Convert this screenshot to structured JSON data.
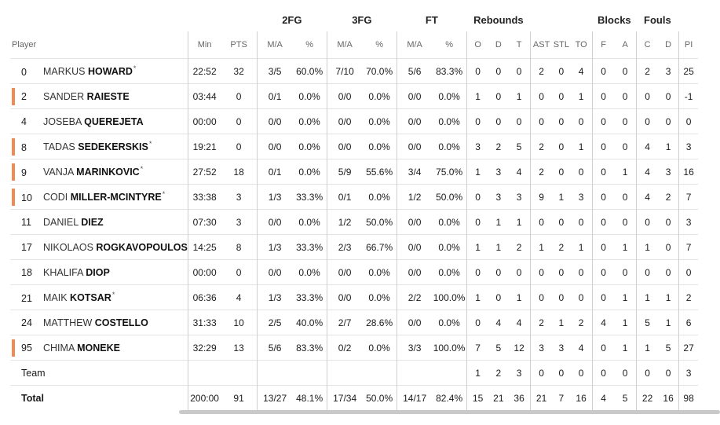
{
  "groups": {
    "fg2": "2FG",
    "fg3": "3FG",
    "ft": "FT",
    "reb": "Rebounds",
    "blk": "Blocks",
    "fouls": "Fouls"
  },
  "headers": {
    "player": "Player",
    "min": "Min",
    "pts": "PTS",
    "fg2_ma": "M/A",
    "fg2_pct": "%",
    "fg3_ma": "M/A",
    "fg3_pct": "%",
    "ft_ma": "M/A",
    "ft_pct": "%",
    "o": "O",
    "d": "D",
    "t": "T",
    "ast": "AST",
    "stl": "STL",
    "to": "TO",
    "bf": "F",
    "ba": "A",
    "fc": "C",
    "fd": "D",
    "pir": "PI"
  },
  "players": [
    {
      "num": "0",
      "first": "MARKUS",
      "last": "HOWARD",
      "star": "*",
      "starter": false,
      "min": "22:52",
      "pts": "32",
      "fg2": "3/5",
      "fg2p": "60.0%",
      "fg3": "7/10",
      "fg3p": "70.0%",
      "ft": "5/6",
      "ftp": "83.3%",
      "o": "0",
      "d": "0",
      "t": "0",
      "ast": "2",
      "stl": "0",
      "to": "4",
      "bf": "0",
      "ba": "0",
      "fc": "2",
      "fd": "3",
      "pir": "25"
    },
    {
      "num": "2",
      "first": "SANDER",
      "last": "RAIESTE",
      "star": "",
      "starter": true,
      "min": "03:44",
      "pts": "0",
      "fg2": "0/1",
      "fg2p": "0.0%",
      "fg3": "0/0",
      "fg3p": "0.0%",
      "ft": "0/0",
      "ftp": "0.0%",
      "o": "1",
      "d": "0",
      "t": "1",
      "ast": "0",
      "stl": "0",
      "to": "1",
      "bf": "0",
      "ba": "0",
      "fc": "0",
      "fd": "0",
      "pir": "-1"
    },
    {
      "num": "4",
      "first": "JOSEBA",
      "last": "QUEREJETA",
      "star": "",
      "starter": false,
      "min": "00:00",
      "pts": "0",
      "fg2": "0/0",
      "fg2p": "0.0%",
      "fg3": "0/0",
      "fg3p": "0.0%",
      "ft": "0/0",
      "ftp": "0.0%",
      "o": "0",
      "d": "0",
      "t": "0",
      "ast": "0",
      "stl": "0",
      "to": "0",
      "bf": "0",
      "ba": "0",
      "fc": "0",
      "fd": "0",
      "pir": "0"
    },
    {
      "num": "8",
      "first": "TADAS",
      "last": "SEDEKERSKIS",
      "star": "*",
      "starter": true,
      "min": "19:21",
      "pts": "0",
      "fg2": "0/0",
      "fg2p": "0.0%",
      "fg3": "0/0",
      "fg3p": "0.0%",
      "ft": "0/0",
      "ftp": "0.0%",
      "o": "3",
      "d": "2",
      "t": "5",
      "ast": "2",
      "stl": "0",
      "to": "1",
      "bf": "0",
      "ba": "0",
      "fc": "4",
      "fd": "1",
      "pir": "3"
    },
    {
      "num": "9",
      "first": "VANJA",
      "last": "MARINKOVIC",
      "star": "*",
      "starter": true,
      "min": "27:52",
      "pts": "18",
      "fg2": "0/1",
      "fg2p": "0.0%",
      "fg3": "5/9",
      "fg3p": "55.6%",
      "ft": "3/4",
      "ftp": "75.0%",
      "o": "1",
      "d": "3",
      "t": "4",
      "ast": "2",
      "stl": "0",
      "to": "0",
      "bf": "0",
      "ba": "1",
      "fc": "4",
      "fd": "3",
      "pir": "16"
    },
    {
      "num": "10",
      "first": "CODI",
      "last": "MILLER-MCINTYRE",
      "star": "*",
      "starter": true,
      "min": "33:38",
      "pts": "3",
      "fg2": "1/3",
      "fg2p": "33.3%",
      "fg3": "0/1",
      "fg3p": "0.0%",
      "ft": "1/2",
      "ftp": "50.0%",
      "o": "0",
      "d": "3",
      "t": "3",
      "ast": "9",
      "stl": "1",
      "to": "3",
      "bf": "0",
      "ba": "0",
      "fc": "4",
      "fd": "2",
      "pir": "7"
    },
    {
      "num": "11",
      "first": "DANIEL",
      "last": "DIEZ",
      "star": "",
      "starter": false,
      "min": "07:30",
      "pts": "3",
      "fg2": "0/0",
      "fg2p": "0.0%",
      "fg3": "1/2",
      "fg3p": "50.0%",
      "ft": "0/0",
      "ftp": "0.0%",
      "o": "0",
      "d": "1",
      "t": "1",
      "ast": "0",
      "stl": "0",
      "to": "0",
      "bf": "0",
      "ba": "0",
      "fc": "0",
      "fd": "0",
      "pir": "3"
    },
    {
      "num": "17",
      "first": "NIKOLAOS",
      "last": "ROGKAVOPOULOS",
      "star": "",
      "starter": false,
      "min": "14:25",
      "pts": "8",
      "fg2": "1/3",
      "fg2p": "33.3%",
      "fg3": "2/3",
      "fg3p": "66.7%",
      "ft": "0/0",
      "ftp": "0.0%",
      "o": "1",
      "d": "1",
      "t": "2",
      "ast": "1",
      "stl": "2",
      "to": "1",
      "bf": "0",
      "ba": "1",
      "fc": "1",
      "fd": "0",
      "pir": "7"
    },
    {
      "num": "18",
      "first": "KHALIFA",
      "last": "DIOP",
      "star": "",
      "starter": false,
      "min": "00:00",
      "pts": "0",
      "fg2": "0/0",
      "fg2p": "0.0%",
      "fg3": "0/0",
      "fg3p": "0.0%",
      "ft": "0/0",
      "ftp": "0.0%",
      "o": "0",
      "d": "0",
      "t": "0",
      "ast": "0",
      "stl": "0",
      "to": "0",
      "bf": "0",
      "ba": "0",
      "fc": "0",
      "fd": "0",
      "pir": "0"
    },
    {
      "num": "21",
      "first": "MAIK",
      "last": "KOTSAR",
      "star": "*",
      "starter": false,
      "min": "06:36",
      "pts": "4",
      "fg2": "1/3",
      "fg2p": "33.3%",
      "fg3": "0/0",
      "fg3p": "0.0%",
      "ft": "2/2",
      "ftp": "100.0%",
      "o": "1",
      "d": "0",
      "t": "1",
      "ast": "0",
      "stl": "0",
      "to": "0",
      "bf": "0",
      "ba": "1",
      "fc": "1",
      "fd": "1",
      "pir": "2"
    },
    {
      "num": "24",
      "first": "MATTHEW",
      "last": "COSTELLO",
      "star": "",
      "starter": false,
      "min": "31:33",
      "pts": "10",
      "fg2": "2/5",
      "fg2p": "40.0%",
      "fg3": "2/7",
      "fg3p": "28.6%",
      "ft": "0/0",
      "ftp": "0.0%",
      "o": "0",
      "d": "4",
      "t": "4",
      "ast": "2",
      "stl": "1",
      "to": "2",
      "bf": "4",
      "ba": "1",
      "fc": "5",
      "fd": "1",
      "pir": "6"
    },
    {
      "num": "95",
      "first": "CHIMA",
      "last": "MONEKE",
      "star": "",
      "starter": true,
      "min": "32:29",
      "pts": "13",
      "fg2": "5/6",
      "fg2p": "83.3%",
      "fg3": "0/2",
      "fg3p": "0.0%",
      "ft": "3/3",
      "ftp": "100.0%",
      "o": "7",
      "d": "5",
      "t": "12",
      "ast": "3",
      "stl": "3",
      "to": "4",
      "bf": "0",
      "ba": "1",
      "fc": "1",
      "fd": "5",
      "pir": "27"
    }
  ],
  "team": {
    "label": "Team",
    "o": "1",
    "d": "2",
    "t": "3",
    "ast": "0",
    "stl": "0",
    "to": "0",
    "bf": "0",
    "ba": "0",
    "fc": "0",
    "fd": "0",
    "pir": "3"
  },
  "total": {
    "label": "Total",
    "min": "200:00",
    "pts": "91",
    "fg2": "13/27",
    "fg2p": "48.1%",
    "fg3": "17/34",
    "fg3p": "50.0%",
    "ft": "14/17",
    "ftp": "82.4%",
    "o": "15",
    "d": "21",
    "t": "36",
    "ast": "21",
    "stl": "7",
    "to": "16",
    "bf": "4",
    "ba": "5",
    "fc": "22",
    "fd": "16",
    "pir": "98"
  },
  "colors": {
    "starter_bar": "#f08a55",
    "scrollbar": "#c9c9c9"
  }
}
